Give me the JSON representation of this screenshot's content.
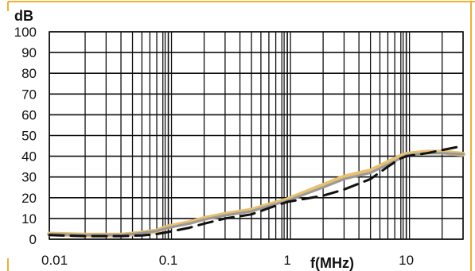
{
  "chart_data": {
    "type": "line",
    "title": "",
    "xlabel": "f(MHz)",
    "ylabel": "dB",
    "x_scale": "log",
    "xlim": [
      0.01,
      30
    ],
    "ylim": [
      0,
      100
    ],
    "grid": true,
    "frame_color": "#f0b030",
    "x_ticks": [
      {
        "value": 0.01,
        "label": "0.01"
      },
      {
        "value": 0.1,
        "label": "0.1"
      },
      {
        "value": 1,
        "label": "1"
      },
      {
        "value": 10,
        "label": "10"
      }
    ],
    "y_ticks": [
      {
        "value": 0,
        "label": "0"
      },
      {
        "value": 10,
        "label": "10"
      },
      {
        "value": 20,
        "label": "20"
      },
      {
        "value": 30,
        "label": "30"
      },
      {
        "value": 40,
        "label": "40"
      },
      {
        "value": 50,
        "label": "50"
      },
      {
        "value": 60,
        "label": "60"
      },
      {
        "value": 70,
        "label": "70"
      },
      {
        "value": 80,
        "label": "80"
      },
      {
        "value": 90,
        "label": "90"
      },
      {
        "value": 100,
        "label": "100"
      }
    ],
    "series": [
      {
        "style": "solid",
        "color": "#e8c070",
        "x": [
          0.01,
          0.02,
          0.04,
          0.06,
          0.08,
          0.1,
          0.15,
          0.2,
          0.3,
          0.5,
          0.7,
          1,
          2,
          3,
          5,
          7,
          9,
          10,
          15,
          20,
          30
        ],
        "y": [
          2.5,
          2,
          2,
          3,
          4,
          6,
          8,
          10,
          12,
          14,
          16.5,
          19,
          26,
          30,
          33,
          37,
          40,
          41,
          42,
          42,
          41
        ]
      },
      {
        "style": "solid",
        "color": "#999999",
        "x": [
          0.01,
          0.02,
          0.04,
          0.06,
          0.08,
          0.1,
          0.15,
          0.2,
          0.3,
          0.5,
          0.7,
          1,
          2,
          3,
          5,
          7,
          9,
          10,
          15,
          20,
          30
        ],
        "y": [
          2.5,
          2,
          2,
          3,
          4,
          5.5,
          7.5,
          9.5,
          11.5,
          13.5,
          16,
          18.5,
          25,
          29,
          32,
          36,
          39,
          40.5,
          41.5,
          41.5,
          41
        ]
      },
      {
        "style": "dashed",
        "color": "#111111",
        "x": [
          0.01,
          0.02,
          0.04,
          0.06,
          0.08,
          0.1,
          0.15,
          0.2,
          0.3,
          0.5,
          0.7,
          1,
          2,
          3,
          5,
          7,
          9,
          10,
          15,
          20,
          30
        ],
        "y": [
          2,
          1.5,
          1.5,
          1.8,
          2.5,
          3.5,
          5.5,
          7.5,
          10,
          12,
          15,
          18,
          21,
          24,
          29,
          35,
          39,
          40,
          41.5,
          43,
          45
        ]
      }
    ]
  }
}
